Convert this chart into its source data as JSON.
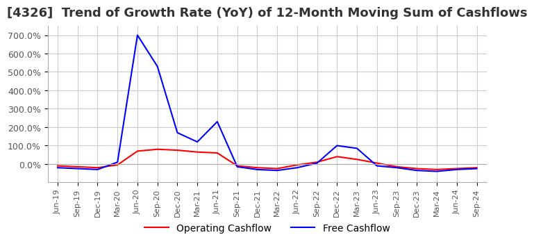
{
  "title": "[4326]  Trend of Growth Rate (YoY) of 12-Month Moving Sum of Cashflows",
  "title_fontsize": 13,
  "xlabel": "",
  "ylabel": "",
  "ylim": [
    -100,
    750
  ],
  "yticks": [
    0,
    100,
    200,
    300,
    400,
    500,
    600,
    700
  ],
  "background_color": "#ffffff",
  "grid_color": "#cccccc",
  "legend_labels": [
    "Operating Cashflow",
    "Free Cashflow"
  ],
  "legend_colors": [
    "#ff0000",
    "#0000ff"
  ],
  "x_labels": [
    "Jun-19",
    "Sep-19",
    "Dec-19",
    "Mar-20",
    "Jun-20",
    "Sep-20",
    "Dec-20",
    "Mar-21",
    "Jun-21",
    "Sep-21",
    "Dec-21",
    "Mar-22",
    "Jun-22",
    "Sep-22",
    "Dec-22",
    "Mar-23",
    "Jun-23",
    "Sep-23",
    "Dec-23",
    "Mar-24",
    "Jun-24",
    "Sep-24"
  ],
  "operating_cashflow": [
    -10,
    -15,
    -20,
    -5,
    70,
    80,
    75,
    65,
    60,
    -10,
    -20,
    -25,
    -5,
    10,
    40,
    25,
    5,
    -15,
    -25,
    -30,
    -25,
    -20
  ],
  "free_cashflow": [
    -20,
    -25,
    -30,
    10,
    700,
    530,
    170,
    120,
    230,
    -15,
    -30,
    -35,
    -20,
    5,
    100,
    85,
    -10,
    -20,
    -35,
    -40,
    -30,
    -25
  ]
}
